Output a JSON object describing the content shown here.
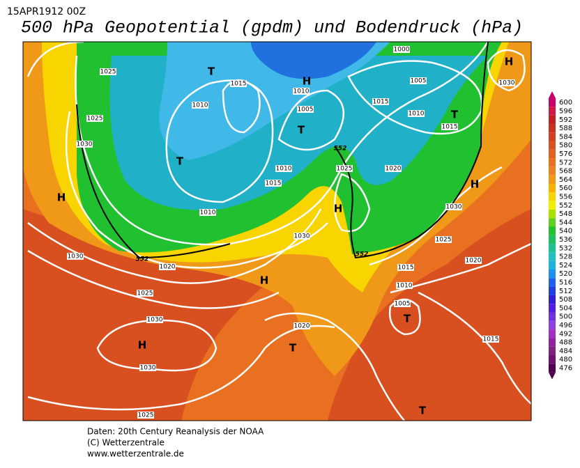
{
  "header": {
    "date": "15APR1912 00Z",
    "title": "500 hPa Geopotential (gpdm) und Bodendruck (hPa)"
  },
  "isobar_labels": [
    "1025",
    "1025",
    "1030",
    "1030",
    "1020",
    "1025",
    "1030",
    "1030",
    "1025",
    "1015",
    "1010",
    "1010",
    "1015",
    "1010",
    "1010",
    "1005",
    "1000",
    "1005",
    "1015",
    "1010",
    "1015",
    "1030",
    "1020",
    "1025",
    "1030",
    "1030",
    "1025",
    "1020",
    "1015",
    "1010",
    "1005",
    "1020",
    "1015"
  ],
  "height_labels": [
    "552",
    "552",
    "552"
  ],
  "pressure_centers": [
    "H",
    "T",
    "T",
    "T",
    "T",
    "H",
    "H",
    "H",
    "H",
    "H",
    "H",
    "T",
    "T",
    "T"
  ],
  "colorbar": {
    "ticks": [
      600,
      596,
      592,
      588,
      584,
      580,
      576,
      572,
      568,
      564,
      560,
      556,
      552,
      548,
      544,
      540,
      536,
      532,
      528,
      524,
      520,
      516,
      512,
      508,
      504,
      500,
      496,
      492,
      488,
      484,
      480,
      476
    ],
    "colors": [
      "#c8006a",
      "#d01848",
      "#c02020",
      "#c83020",
      "#d04020",
      "#d85020",
      "#e06020",
      "#e87020",
      "#f08020",
      "#f09818",
      "#f8b400",
      "#f8d400",
      "#f0f000",
      "#a8e000",
      "#60d020",
      "#20c030",
      "#20c060",
      "#20c090",
      "#20c0c0",
      "#20b0e0",
      "#2090f0",
      "#2060f0",
      "#2040e0",
      "#3020d0",
      "#5020e0",
      "#7030e0",
      "#9040e0",
      "#a030c0",
      "#9020a0",
      "#802080",
      "#701070",
      "#500050"
    ]
  },
  "footer": {
    "lines": [
      "Daten: 20th Century Reanalysis der NOAA",
      "(C) Wetterzentrale",
      "www.wetterzentrale.de"
    ]
  }
}
